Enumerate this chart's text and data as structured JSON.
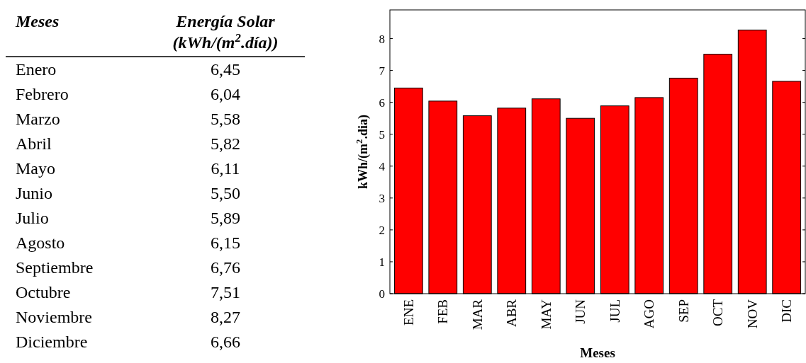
{
  "chart_data": [
    {
      "type": "other",
      "xlabel": "Meses",
      "ylabel": "Energía Solar (kWh/(m$^{2}$.día))",
      "categories": [
        "Enero",
        "Febrero",
        "Marzo",
        "Abril",
        "Mayo",
        "Junio",
        "Julio",
        "Agosto",
        "Septiembre",
        "Octubre",
        "Noviembre",
        "Diciembre"
      ],
      "value_labels": [
        "6,45",
        "6,04",
        "5,58",
        "5,82",
        "6,11",
        "5,50",
        "5,89",
        "6,15",
        "6,76",
        "7,51",
        "8,27",
        "6,66"
      ]
    },
    {
      "type": "bar",
      "xlabel": "Meses",
      "ylabel": "kWh/(m$^{2}$.dia)",
      "categories": [
        "ENE",
        "FEB",
        "MAR",
        "ABR",
        "MAY",
        "JUN",
        "JUL",
        "AGO",
        "SEP",
        "OCT",
        "NOV",
        "DIC"
      ],
      "values": [
        6.45,
        6.04,
        5.58,
        5.82,
        6.11,
        5.5,
        5.89,
        6.15,
        6.76,
        7.51,
        8.27,
        6.66
      ],
      "color": "#ff0000",
      "ylim": [
        0,
        8.9
      ],
      "yticks": [
        0,
        1,
        2,
        3,
        4,
        5,
        6,
        7,
        8
      ],
      "grid": false
    }
  ]
}
